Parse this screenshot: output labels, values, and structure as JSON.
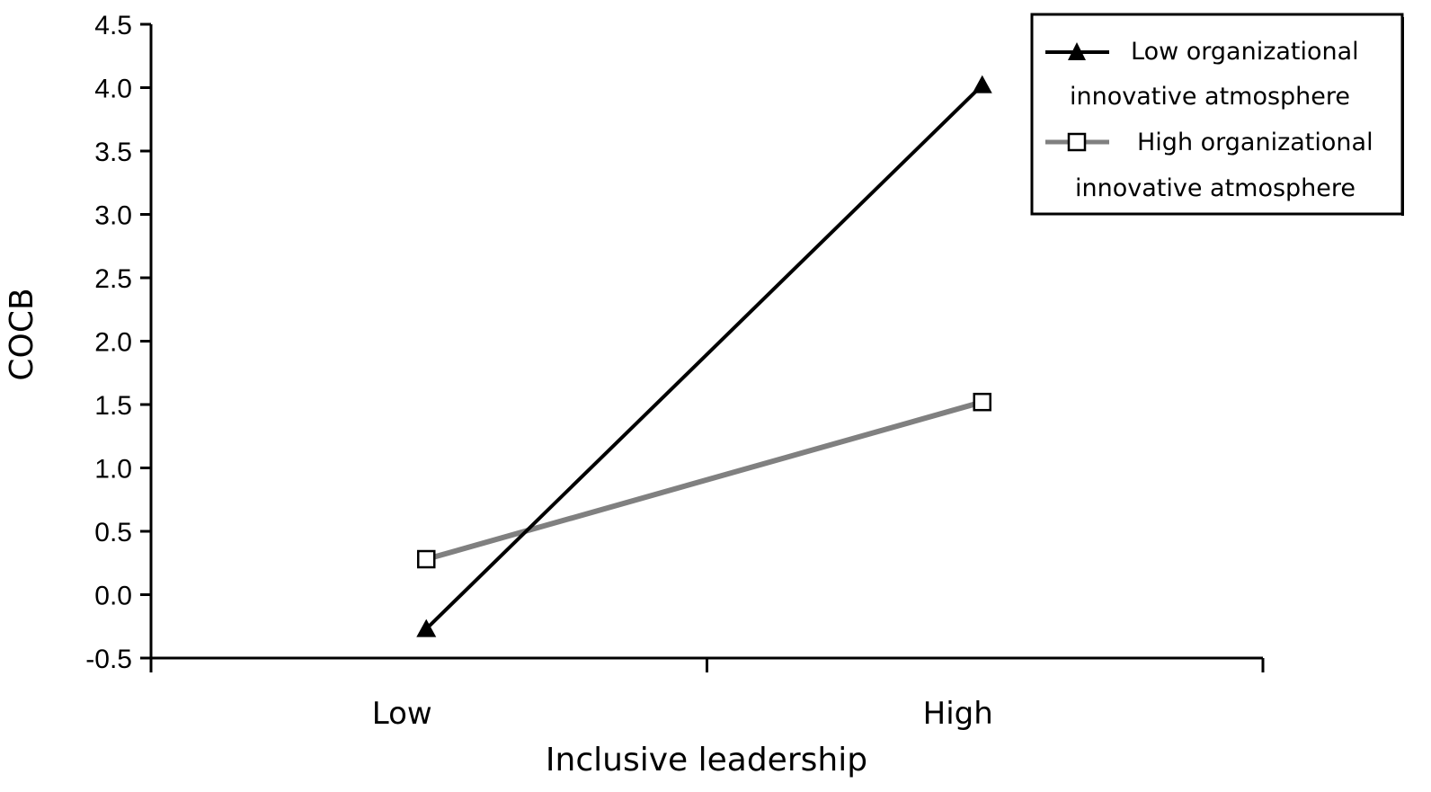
{
  "chart_data": {
    "type": "line",
    "title": "",
    "xlabel": "Inclusive leadership",
    "ylabel": "COCB",
    "categories": [
      "Low",
      "High"
    ],
    "ylim": [
      -0.5,
      4.5
    ],
    "yticks": [
      "-0.5",
      "0.0",
      "0.5",
      "1.0",
      "1.5",
      "2.0",
      "2.5",
      "3.0",
      "3.5",
      "4.0",
      "4.5"
    ],
    "grid": false,
    "legend_position": "top-right",
    "series": [
      {
        "name_line1": "Low organizational",
        "name_line2": "innovative atmosphere",
        "values": [
          -0.27,
          4.02
        ],
        "color": "#000000",
        "marker": "filled-triangle"
      },
      {
        "name_line1": "High organizational",
        "name_line2": "innovative atmosphere",
        "values": [
          0.28,
          1.52
        ],
        "color": "#808080",
        "marker": "open-square"
      }
    ]
  }
}
